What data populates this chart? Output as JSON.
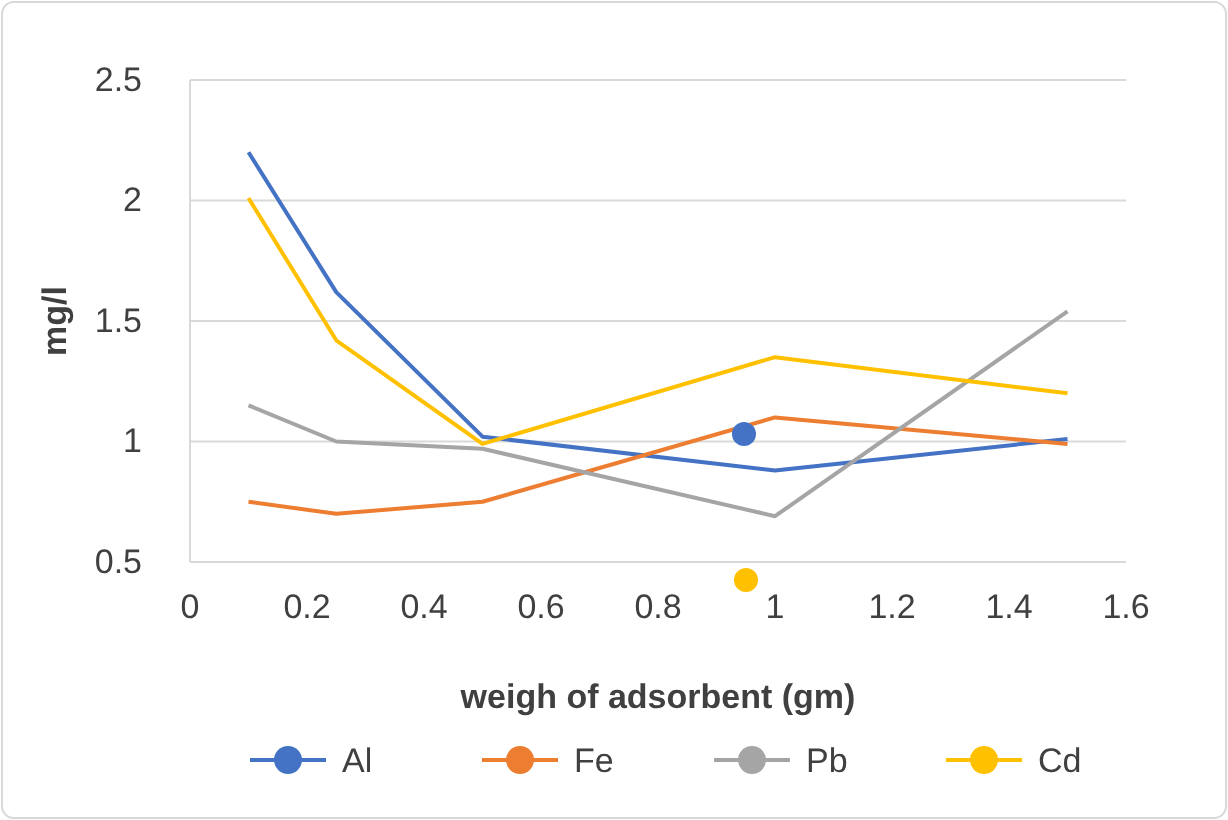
{
  "chart_data": {
    "type": "line",
    "xlabel": "weigh of adsorbent (gm)",
    "ylabel": "mg/l",
    "x": [
      0.1,
      0.25,
      0.5,
      1,
      1.5
    ],
    "series": [
      {
        "name": "Al",
        "color": "#4472c4",
        "values": [
          2.2,
          1.62,
          1.02,
          0.88,
          1.01
        ]
      },
      {
        "name": "Fe",
        "color": "#ed7d31",
        "values": [
          0.75,
          0.7,
          0.75,
          1.1,
          0.99
        ]
      },
      {
        "name": "Pb",
        "color": "#a5a5a5",
        "values": [
          1.15,
          1.0,
          0.97,
          0.69,
          1.54
        ]
      },
      {
        "name": "Cd",
        "color": "#ffc000",
        "values": [
          2.01,
          1.42,
          0.99,
          1.35,
          1.2
        ]
      }
    ],
    "xlim": [
      0,
      1.6
    ],
    "xticks": [
      0,
      0.2,
      0.4,
      0.6,
      0.8,
      1,
      1.2,
      1.4,
      1.6
    ],
    "ylim": [
      0.5,
      2.5
    ],
    "yticks": [
      0.5,
      1,
      1.5,
      2,
      2.5
    ],
    "grid": "y",
    "legend": "bottom",
    "marker": "none",
    "line_style": "solid"
  }
}
